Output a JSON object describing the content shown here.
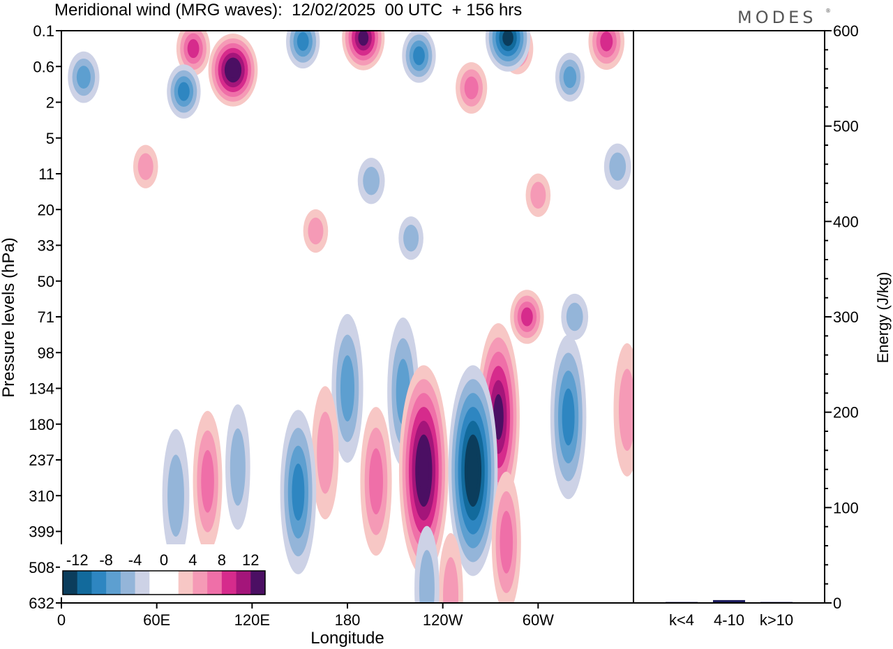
{
  "header": {
    "title": "Meridional wind (MRG waves):  12/02/2025  00 UTC  + 156 hrs",
    "brand": "MODES",
    "brand_mark": "®"
  },
  "chart_data": [
    {
      "type": "heatmap",
      "title": "Meridional wind (MRG waves):  12/02/2025  00 UTC  + 156 hrs",
      "xlabel": "Longitude",
      "ylabel": "Pressure levels (hPa)",
      "x_ticks": [
        "0",
        "60E",
        "120E",
        "180",
        "120W",
        "60W"
      ],
      "x_tick_degrees": [
        0,
        60,
        120,
        180,
        240,
        300
      ],
      "x_range_degrees": [
        0,
        360
      ],
      "y_ticks": [
        "0.1",
        "0.6",
        "2",
        "5",
        "11",
        "20",
        "33",
        "50",
        "71",
        "98",
        "134",
        "180",
        "237",
        "310",
        "399",
        "508",
        "632"
      ],
      "y_scale": "level index (top to bottom)",
      "colorbar": {
        "labels": [
          "-12",
          "-8",
          "-4",
          "0",
          "4",
          "8",
          "12"
        ],
        "colors": [
          "#0b3d5c",
          "#126a9c",
          "#2e86c1",
          "#5d9fd0",
          "#94b5d9",
          "#cdd2e6",
          "#ffffff",
          "#ffffff",
          "#f7c7c5",
          "#f59ab6",
          "#ef6fa8",
          "#d62b8c",
          "#a4157a",
          "#4b0f63"
        ],
        "placement": "bottom-left"
      },
      "features": [
        {
          "lon": 108,
          "level": 1.1,
          "v": 14
        },
        {
          "lon": 83,
          "level": 0.5,
          "v": 7
        },
        {
          "lon": 190,
          "level": 0.2,
          "v": 11
        },
        {
          "lon": 287,
          "level": 0.5,
          "v": 6
        },
        {
          "lon": 343,
          "level": 0.3,
          "v": 8
        },
        {
          "lon": 152,
          "level": 0.3,
          "v": -7
        },
        {
          "lon": 281,
          "level": 0.2,
          "v": -12
        },
        {
          "lon": 225,
          "level": 0.7,
          "v": -7
        },
        {
          "lon": 14,
          "level": 1.3,
          "v": -6
        },
        {
          "lon": 77,
          "level": 1.7,
          "v": -7
        },
        {
          "lon": 258,
          "level": 1.6,
          "v": 6
        },
        {
          "lon": 320,
          "level": 1.3,
          "v": -5
        },
        {
          "lon": 195,
          "level": 4.2,
          "v": -4
        },
        {
          "lon": 300,
          "level": 4.6,
          "v": 3
        },
        {
          "lon": 53,
          "level": 3.8,
          "v": 3
        },
        {
          "lon": 350,
          "level": 3.8,
          "v": -4
        },
        {
          "lon": 160,
          "level": 5.6,
          "v": 3
        },
        {
          "lon": 220,
          "level": 5.8,
          "v": -3
        },
        {
          "lon": 293,
          "level": 8.0,
          "v": 7
        },
        {
          "lon": 323,
          "level": 8.0,
          "v": -4
        },
        {
          "lon": 180,
          "level": 10.0,
          "v": -6
        },
        {
          "lon": 215,
          "level": 10.1,
          "v": -6
        },
        {
          "lon": 275,
          "level": 10.8,
          "v": 11
        },
        {
          "lon": 319,
          "level": 10.8,
          "v": -8
        },
        {
          "lon": 356,
          "level": 10.6,
          "v": 4
        },
        {
          "lon": 228,
          "level": 12.3,
          "v": 14
        },
        {
          "lon": 259,
          "level": 12.3,
          "v": -14
        },
        {
          "lon": 198,
          "level": 12.6,
          "v": 6
        },
        {
          "lon": 166,
          "level": 11.8,
          "v": 4
        },
        {
          "lon": 149,
          "level": 12.9,
          "v": -8
        },
        {
          "lon": 92,
          "level": 12.6,
          "v": 5
        },
        {
          "lon": 72,
          "level": 13.0,
          "v": -4
        },
        {
          "lon": 111,
          "level": 12.2,
          "v": -3
        },
        {
          "lon": 280,
          "level": 14.3,
          "v": 5
        },
        {
          "lon": 245,
          "level": 15.8,
          "v": 3
        },
        {
          "lon": 230,
          "level": 15.6,
          "v": -3
        }
      ]
    },
    {
      "type": "bar",
      "categories": [
        "k<4",
        "4-10",
        "k>10"
      ],
      "values": [
        1,
        3,
        1
      ],
      "ylabel": "Energy (J/kg)",
      "ylim": [
        0,
        600
      ],
      "y_ticks": [
        "0",
        "100",
        "200",
        "300",
        "400",
        "500",
        "600"
      ],
      "bar_color": "#1a1a5c"
    }
  ]
}
